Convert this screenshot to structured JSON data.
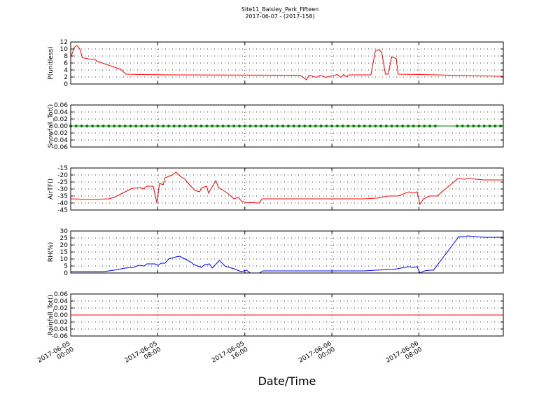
{
  "title": "Site11_Baisley_Park_Fifteen",
  "subtitle": "2017-06-07 - (2017-158)",
  "xlabel": "Date/Time",
  "chart_data": [
    {
      "type": "line",
      "ylabel": "P(unitless)",
      "grid": true,
      "xlim": [
        "2017-06-05 00:00",
        "2017-06-06 15:45"
      ],
      "xticks": [
        "2017-06-05 00:00",
        "2017-06-05 08:00",
        "2017-06-05 16:00",
        "2017-06-06 00:00",
        "2017-06-06 08:00"
      ],
      "ylim": [
        0,
        12
      ],
      "yticks": [
        0,
        2,
        4,
        6,
        8,
        10,
        12
      ],
      "x": [
        "2017-06-05 00:00",
        "2017-06-05 00:20",
        "2017-06-05 00:35",
        "2017-06-05 00:50",
        "2017-06-05 01:05",
        "2017-06-05 01:55",
        "2017-06-05 02:10",
        "2017-06-05 02:25",
        "2017-06-05 03:05",
        "2017-06-05 03:50",
        "2017-06-05 04:35",
        "2017-06-05 05:05",
        "2017-06-05 06:25",
        "2017-06-05 09:35",
        "2017-06-05 21:05",
        "2017-06-05 21:40",
        "2017-06-05 21:55",
        "2017-06-05 22:35",
        "2017-06-05 22:55",
        "2017-06-05 23:25",
        "2017-06-06 00:00",
        "2017-06-06 00:30",
        "2017-06-06 00:50",
        "2017-06-06 01:05",
        "2017-06-06 01:20",
        "2017-06-06 01:35",
        "2017-06-06 03:35",
        "2017-06-06 04:00",
        "2017-06-06 04:20",
        "2017-06-06 04:35",
        "2017-06-06 04:55",
        "2017-06-06 05:10",
        "2017-06-06 05:30",
        "2017-06-06 05:55",
        "2017-06-06 06:05",
        "2017-06-06 08:05",
        "2017-06-06 15:45"
      ],
      "series": [
        {
          "color": "#ff0000",
          "values": [
            7.5,
            10.5,
            11,
            10,
            7.5,
            7,
            7.2,
            6.5,
            5.8,
            5,
            4.2,
            2.8,
            2.7,
            2.6,
            2.5,
            1.2,
            2.5,
            1.9,
            2.5,
            1.9,
            2.3,
            2.7,
            1.9,
            2.7,
            2.1,
            2.6,
            2.6,
            9.5,
            9.8,
            9,
            2.8,
            2.8,
            7.8,
            7.2,
            2.8,
            2.7,
            2.2
          ]
        }
      ]
    },
    {
      "type": "line",
      "ylabel": "Snowfall_Tot()",
      "grid": true,
      "xlim": [
        "2017-06-05 00:00",
        "2017-06-06 15:45"
      ],
      "xticks": [
        "2017-06-05 00:00",
        "2017-06-05 08:00",
        "2017-06-05 16:00",
        "2017-06-06 00:00",
        "2017-06-06 08:00"
      ],
      "ylim": [
        -0.06,
        0.06
      ],
      "yticks": [
        -0.06,
        -0.04,
        -0.02,
        {
          "value": 0,
          "label": "0.00"
        },
        0.02,
        0.04,
        0.06
      ],
      "x": [
        "2017-06-05 00:00",
        "2017-06-05 00:30",
        "2017-06-05 01:00",
        "2017-06-05 01:30",
        "2017-06-05 02:00",
        "2017-06-05 02:30",
        "2017-06-05 03:00",
        "2017-06-05 03:30",
        "2017-06-05 04:00",
        "2017-06-05 04:30",
        "2017-06-05 05:00",
        "2017-06-05 05:30",
        "2017-06-05 06:00",
        "2017-06-05 06:30",
        "2017-06-05 07:00",
        "2017-06-05 07:30",
        "2017-06-05 08:00",
        "2017-06-05 08:30",
        "2017-06-05 09:00",
        "2017-06-05 09:30",
        "2017-06-05 10:00",
        "2017-06-05 10:30",
        "2017-06-05 11:00",
        "2017-06-05 11:30",
        "2017-06-05 12:00",
        "2017-06-05 12:30",
        "2017-06-05 13:00",
        "2017-06-05 13:30",
        "2017-06-05 14:00",
        "2017-06-05 14:30",
        "2017-06-05 15:00",
        "2017-06-05 15:30",
        "2017-06-05 16:00",
        "2017-06-05 16:30",
        "2017-06-05 17:00",
        "2017-06-05 17:30",
        "2017-06-05 18:00",
        "2017-06-05 18:30",
        "2017-06-05 19:00",
        "2017-06-05 19:30",
        "2017-06-05 20:00",
        "2017-06-05 20:30",
        "2017-06-05 21:00",
        "2017-06-05 21:30",
        "2017-06-05 22:00",
        "2017-06-05 22:30",
        "2017-06-05 23:00",
        "2017-06-05 23:30",
        "2017-06-06 00:00",
        "2017-06-06 00:30",
        "2017-06-06 01:00",
        "2017-06-06 01:30",
        "2017-06-06 02:00",
        "2017-06-06 02:30",
        "2017-06-06 03:00",
        "2017-06-06 03:30",
        "2017-06-06 04:00",
        "2017-06-06 04:30",
        "2017-06-06 05:00",
        "2017-06-06 05:30",
        "2017-06-06 06:00",
        "2017-06-06 06:30",
        "2017-06-06 07:00",
        "2017-06-06 07:30",
        "2017-06-06 08:00",
        "2017-06-06 08:30",
        "2017-06-06 09:00",
        "2017-06-06 09:30",
        "2017-06-06 11:30",
        "2017-06-06 12:00",
        "2017-06-06 12:30",
        "2017-06-06 13:00",
        "2017-06-06 13:30",
        "2017-06-06 14:00",
        "2017-06-06 14:30",
        "2017-06-06 15:00",
        "2017-06-06 15:30"
      ],
      "series": [
        {
          "color": "#008000",
          "marker": true,
          "values": [
            0,
            0,
            0,
            0,
            0,
            0,
            0,
            0,
            0,
            0,
            0,
            0,
            0,
            0,
            0,
            0,
            0,
            0,
            0,
            0,
            0,
            0,
            0,
            0,
            0,
            0,
            0,
            0,
            0,
            0,
            0,
            0,
            0,
            0,
            0,
            0,
            0,
            0,
            0,
            0,
            0,
            0,
            0,
            0,
            0,
            0,
            0,
            0,
            0,
            0,
            0,
            0,
            0,
            0,
            0,
            0,
            0,
            0,
            0,
            0,
            0,
            0,
            0,
            0,
            0,
            0,
            0,
            0,
            0,
            0,
            0,
            0,
            0,
            0,
            0,
            0,
            0
          ]
        }
      ]
    },
    {
      "type": "line",
      "ylabel": "AirTF()",
      "grid": true,
      "xlim": [
        "2017-06-05 00:00",
        "2017-06-06 15:45"
      ],
      "xticks": [
        "2017-06-05 00:00",
        "2017-06-05 08:00",
        "2017-06-05 16:00",
        "2017-06-06 00:00",
        "2017-06-06 08:00"
      ],
      "ylim": [
        -45,
        -15
      ],
      "yticks": [
        -45,
        -40,
        -35,
        -30,
        -25,
        -20,
        -15
      ],
      "x": [
        "2017-06-05 00:00",
        "2017-06-05 02:00",
        "2017-06-05 03:30",
        "2017-06-05 04:00",
        "2017-06-05 04:45",
        "2017-06-05 05:40",
        "2017-06-05 06:25",
        "2017-06-05 06:40",
        "2017-06-05 07:00",
        "2017-06-05 07:35",
        "2017-06-05 07:55",
        "2017-06-05 08:10",
        "2017-06-05 08:30",
        "2017-06-05 08:40",
        "2017-06-05 09:20",
        "2017-06-05 09:40",
        "2017-06-05 10:05",
        "2017-06-05 10:30",
        "2017-06-05 10:55",
        "2017-06-05 11:25",
        "2017-06-05 11:50",
        "2017-06-05 12:05",
        "2017-06-05 12:30",
        "2017-06-05 12:40",
        "2017-06-05 13:20",
        "2017-06-05 13:35",
        "2017-06-05 14:00",
        "2017-06-05 14:25",
        "2017-06-05 15:00",
        "2017-06-05 15:25",
        "2017-06-05 15:40",
        "2017-06-05 16:00",
        "2017-06-05 17:20",
        "2017-06-05 17:35",
        "2017-06-05 21:05",
        "2017-06-06 02:55",
        "2017-06-06 04:10",
        "2017-06-06 05:10",
        "2017-06-06 06:05",
        "2017-06-06 07:05",
        "2017-06-06 07:25",
        "2017-06-06 07:50",
        "2017-06-06 08:05",
        "2017-06-06 08:25",
        "2017-06-06 09:00",
        "2017-06-06 09:40",
        "2017-06-06 11:35",
        "2017-06-06 12:10",
        "2017-06-06 12:35",
        "2017-06-06 13:55",
        "2017-06-06 15:45"
      ],
      "series": [
        {
          "color": "#ff0000",
          "values": [
            -37,
            -37.5,
            -37,
            -36,
            -33,
            -29.5,
            -29,
            -30,
            -28,
            -28,
            -40,
            -26,
            -27,
            -22,
            -20,
            -18,
            -21,
            -23,
            -27,
            -31,
            -32,
            -29,
            -28,
            -33,
            -24,
            -29,
            -31,
            -33,
            -37,
            -36,
            -38.5,
            -39.5,
            -40,
            -37,
            -37,
            -37,
            -36.5,
            -35,
            -35,
            -32,
            -33,
            -32,
            -41,
            -37,
            -35,
            -35,
            -22.5,
            -23,
            -22.5,
            -23.5,
            -23.5
          ]
        }
      ]
    },
    {
      "type": "line",
      "ylabel": "RH(%)",
      "grid": true,
      "xlim": [
        "2017-06-05 00:00",
        "2017-06-06 15:45"
      ],
      "xticks": [
        "2017-06-05 00:00",
        "2017-06-05 08:00",
        "2017-06-05 16:00",
        "2017-06-06 00:00",
        "2017-06-06 08:00"
      ],
      "ylim": [
        0,
        30
      ],
      "yticks": [
        0,
        5,
        10,
        15,
        20,
        25,
        30
      ],
      "x": [
        "2017-06-05 00:00",
        "2017-06-05 03:00",
        "2017-06-05 04:00",
        "2017-06-05 05:00",
        "2017-06-05 05:45",
        "2017-06-05 06:15",
        "2017-06-05 06:45",
        "2017-06-05 07:00",
        "2017-06-05 07:45",
        "2017-06-05 08:00",
        "2017-06-05 08:20",
        "2017-06-05 08:40",
        "2017-06-05 09:00",
        "2017-06-05 09:40",
        "2017-06-05 10:00",
        "2017-06-05 10:30",
        "2017-06-05 11:00",
        "2017-06-05 11:20",
        "2017-06-05 12:00",
        "2017-06-05 12:20",
        "2017-06-05 12:45",
        "2017-06-05 13:00",
        "2017-06-05 13:40",
        "2017-06-05 14:10",
        "2017-06-05 15:00",
        "2017-06-05 15:40",
        "2017-06-05 16:10",
        "2017-06-05 16:30",
        "2017-06-05 17:20",
        "2017-06-05 17:40",
        "2017-06-05 21:00",
        "2017-06-06 03:00",
        "2017-06-06 04:00",
        "2017-06-06 05:30",
        "2017-06-06 06:00",
        "2017-06-06 07:00",
        "2017-06-06 07:30",
        "2017-06-06 07:50",
        "2017-06-06 08:05",
        "2017-06-06 08:30",
        "2017-06-06 09:00",
        "2017-06-06 09:20",
        "2017-06-06 11:40",
        "2017-06-06 12:10",
        "2017-06-06 12:30",
        "2017-06-06 14:00",
        "2017-06-06 15:45"
      ],
      "series": [
        {
          "color": "#0000ff",
          "values": [
            1,
            1,
            2,
            3.5,
            4,
            5.5,
            5,
            6.5,
            6.5,
            5.5,
            7,
            7,
            10,
            11.5,
            12,
            10,
            8,
            6,
            4,
            6,
            6.5,
            3.5,
            9,
            5,
            3,
            1,
            2,
            0,
            0,
            1.5,
            1.5,
            1.5,
            2,
            2.5,
            3,
            4.5,
            4,
            4.5,
            0,
            1.5,
            2,
            2,
            26,
            26,
            26.5,
            25.5,
            25.5
          ]
        }
      ]
    },
    {
      "type": "line",
      "ylabel": "Rainfall_Tot()",
      "grid": true,
      "xlim": [
        "2017-06-05 00:00",
        "2017-06-06 15:45"
      ],
      "xticks": [
        "2017-06-05 00:00",
        "2017-06-05 08:00",
        "2017-06-05 16:00",
        "2017-06-06 00:00",
        "2017-06-06 08:00"
      ],
      "ylim": [
        -0.06,
        0.06
      ],
      "yticks": [
        -0.06,
        -0.04,
        -0.02,
        {
          "value": 0,
          "label": "0.00"
        },
        0.02,
        0.04,
        0.06
      ],
      "x": [
        "2017-06-05 00:00",
        "2017-06-06 15:45"
      ],
      "series": [
        {
          "color": "#ff0000",
          "values": [
            0,
            0
          ]
        }
      ]
    }
  ]
}
